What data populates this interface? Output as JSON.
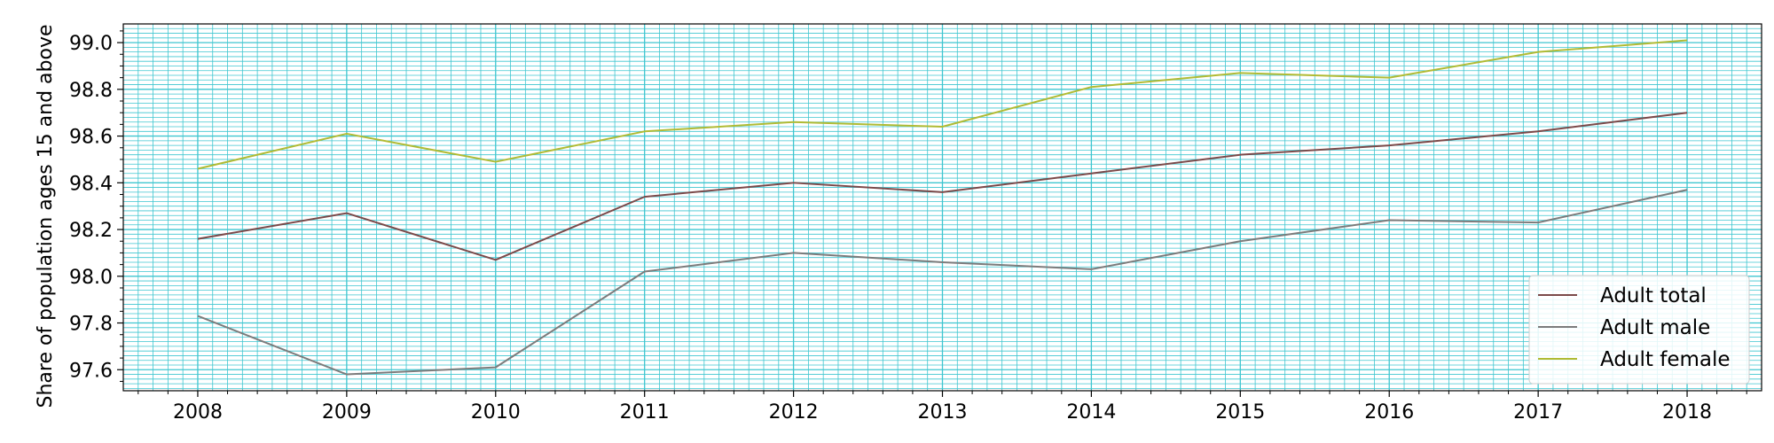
{
  "chart_data": {
    "type": "line",
    "title": "",
    "xlabel": "",
    "ylabel": "Share of population ages 15 and above",
    "x": [
      2008,
      2009,
      2010,
      2011,
      2012,
      2013,
      2014,
      2015,
      2016,
      2017,
      2018
    ],
    "xlim": [
      2007.5,
      2018.5
    ],
    "ylim": [
      97.51,
      99.08
    ],
    "x_ticks": [
      "2008",
      "2009",
      "2010",
      "2011",
      "2012",
      "2013",
      "2014",
      "2015",
      "2016",
      "2017",
      "2018"
    ],
    "y_ticks": [
      "97.6",
      "97.8",
      "98.0",
      "98.2",
      "98.4",
      "98.6",
      "98.8",
      "99.0"
    ],
    "grid": true,
    "grid_color": "#3fc6d0",
    "legend_position": "lower-right",
    "series": [
      {
        "name": "Adult total",
        "color": "#7b4a4a",
        "values": [
          98.16,
          98.27,
          98.07,
          98.34,
          98.4,
          98.36,
          98.44,
          98.52,
          98.56,
          98.62,
          98.7
        ]
      },
      {
        "name": "Adult male",
        "color": "#7c7c7c",
        "values": [
          97.83,
          97.58,
          97.61,
          98.02,
          98.1,
          98.06,
          98.03,
          98.15,
          98.24,
          98.23,
          98.37
        ]
      },
      {
        "name": "Adult female",
        "color": "#b0bb34",
        "values": [
          98.46,
          98.61,
          98.49,
          98.62,
          98.66,
          98.64,
          98.81,
          98.87,
          98.85,
          98.96,
          99.01
        ]
      }
    ]
  }
}
